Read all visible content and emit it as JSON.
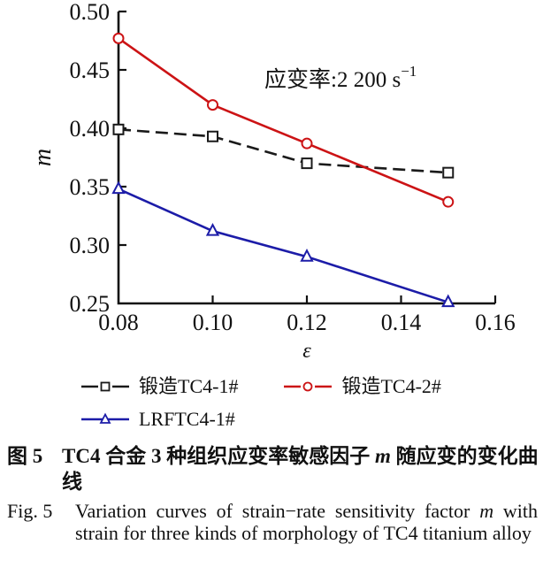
{
  "chart_data": {
    "type": "line",
    "title": "",
    "xlabel": "ε",
    "ylabel": "m",
    "xlim": [
      0.08,
      0.16
    ],
    "ylim": [
      0.25,
      0.5
    ],
    "x_ticks": [
      "0.08",
      "0.10",
      "0.12",
      "0.14",
      "0.16"
    ],
    "y_ticks": [
      "0.25",
      "0.30",
      "0.35",
      "0.40",
      "0.45",
      "0.50"
    ],
    "grid": false,
    "legend_position": "below-chart",
    "annotation": {
      "text": "应变率:2 200 s",
      "superscript": "−1"
    },
    "x": [
      0.08,
      0.1,
      0.12,
      0.15
    ],
    "series": [
      {
        "name": "锻造TC4-1#",
        "values": [
          0.399,
          0.393,
          0.37,
          0.362
        ],
        "color": "#1a1a1a",
        "marker": "square",
        "line_style": "dashed",
        "legend_gap": true
      },
      {
        "name": "锻造TC4-2#",
        "values": [
          0.477,
          0.42,
          0.387,
          0.337
        ],
        "color": "#cc1315",
        "marker": "circle",
        "line_style": "solid",
        "legend_gap": true
      },
      {
        "name": "LRFTC4-1#",
        "values": [
          0.348,
          0.312,
          0.29,
          0.251
        ],
        "color": "#1c1ca8",
        "marker": "triangle",
        "line_style": "solid",
        "legend_gap": false
      }
    ]
  },
  "caption_cn": {
    "label": "图 5",
    "before_m": "TC4 合金 3 种组织应变率敏感因子 ",
    "m_symbol": "m",
    "after_m": " 随应变的变化曲线"
  },
  "caption_en": {
    "label": "Fig. 5",
    "before_m": "Variation curves of strain−rate sensitivity factor ",
    "m_symbol": "m",
    "after_m": " with strain for three kinds of morphology of TC4 titanium alloy"
  }
}
